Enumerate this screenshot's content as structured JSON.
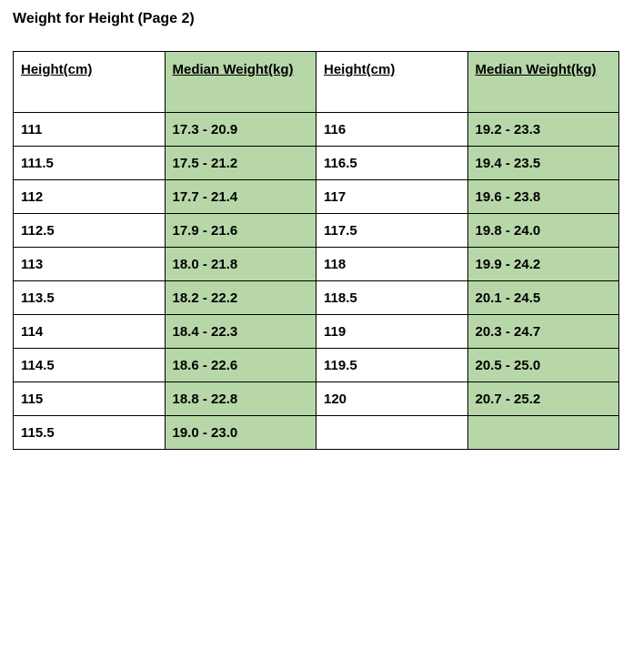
{
  "title": "Weight for Height (Page 2)",
  "colors": {
    "weight_column_bg": "#b7d7a8",
    "border": "#000000"
  },
  "table": {
    "headers": {
      "height_left": "Height(cm)",
      "weight_left": "Median Weight(kg)",
      "height_right": "Height(cm)",
      "weight_right": "Median Weight(kg)"
    },
    "rows": [
      {
        "h1": "111",
        "w1": "17.3 - 20.9",
        "h2": "116",
        "w2": "19.2 - 23.3"
      },
      {
        "h1": "111.5",
        "w1": "17.5 - 21.2",
        "h2": "116.5",
        "w2": "19.4 - 23.5"
      },
      {
        "h1": "112",
        "w1": "17.7 - 21.4",
        "h2": "117",
        "w2": "19.6 - 23.8"
      },
      {
        "h1": "112.5",
        "w1": "17.9 - 21.6",
        "h2": "117.5",
        "w2": "19.8 - 24.0"
      },
      {
        "h1": "113",
        "w1": "18.0 - 21.8",
        "h2": "118",
        "w2": "19.9 - 24.2"
      },
      {
        "h1": "113.5",
        "w1": "18.2 - 22.2",
        "h2": "118.5",
        "w2": "20.1 - 24.5"
      },
      {
        "h1": "114",
        "w1": "18.4 - 22.3",
        "h2": "119",
        "w2": "20.3 - 24.7"
      },
      {
        "h1": "114.5",
        "w1": "18.6 - 22.6",
        "h2": "119.5",
        "w2": "20.5 - 25.0"
      },
      {
        "h1": "115",
        "w1": "18.8 - 22.8",
        "h2": "120",
        "w2": "20.7 - 25.2"
      },
      {
        "h1": "115.5",
        "w1": "19.0 - 23.0",
        "h2": "",
        "w2": ""
      }
    ]
  }
}
